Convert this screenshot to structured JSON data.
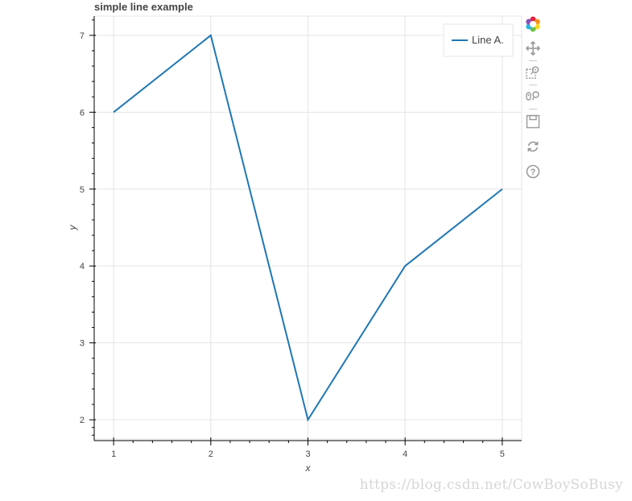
{
  "chart_data": {
    "type": "line",
    "title": "simple line example",
    "xlabel": "x",
    "ylabel": "y",
    "x": [
      1,
      2,
      3,
      4,
      5
    ],
    "series": [
      {
        "name": "Line A.",
        "values": [
          6,
          7,
          2,
          4,
          5
        ],
        "color": "#1f77b4"
      }
    ],
    "xlim": [
      0.8,
      5.2
    ],
    "ylim": [
      1.75,
      7.25
    ],
    "xticks": [
      1,
      2,
      3,
      4,
      5
    ],
    "yticks": [
      2,
      3,
      4,
      5,
      6,
      7
    ],
    "grid": true,
    "legend_position": "top-right"
  },
  "toolbar": {
    "tools": [
      "bokeh-logo-icon",
      "pan-icon",
      "box-zoom-icon",
      "wheel-zoom-icon",
      "save-icon",
      "reset-icon",
      "help-icon"
    ]
  },
  "watermark": "https://blog.csdn.net/CowBoySoBusy"
}
